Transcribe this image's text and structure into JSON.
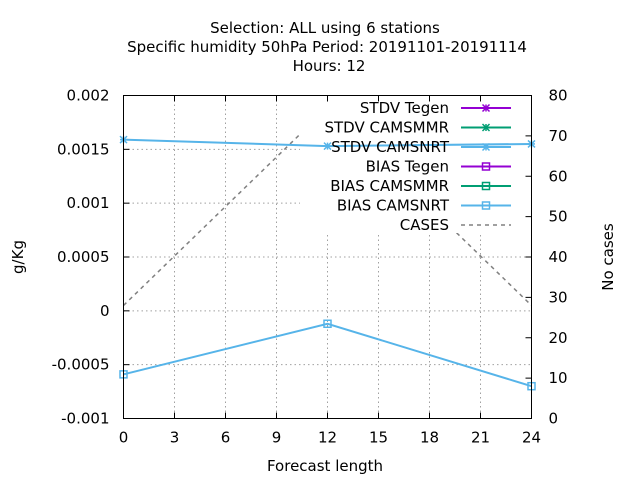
{
  "chart_data": {
    "type": "line",
    "title_lines": [
      "Selection: ALL using     6 stations",
      "Specific humidity 50hPa   Period: 20191101-20191114",
      "Hours:  12"
    ],
    "xlabel": "Forecast length",
    "ylabel": "g/Kg",
    "y2label": "No cases",
    "x_ticks": [
      0,
      3,
      6,
      9,
      12,
      15,
      18,
      21,
      24
    ],
    "x_tick_labels": [
      "0",
      "3",
      "6",
      "9",
      "12",
      "15",
      "18",
      "21",
      "24"
    ],
    "xlim": [
      0,
      24
    ],
    "y_ticks": [
      -0.001,
      -0.0005,
      0,
      0.0005,
      0.001,
      0.0015,
      0.002
    ],
    "y_tick_labels": [
      "-0.001",
      "-0.0005",
      "0",
      "0.0005",
      "0.001",
      "0.0015",
      "0.002"
    ],
    "ylim": [
      -0.001,
      0.002
    ],
    "y2_ticks": [
      0,
      10,
      20,
      30,
      40,
      50,
      60,
      70,
      80
    ],
    "y2_tick_labels": [
      "0",
      "10",
      "20",
      "30",
      "40",
      "50",
      "60",
      "70",
      "80"
    ],
    "y2lim": [
      0,
      80
    ],
    "grid": true,
    "legend_position": "top-right",
    "series": [
      {
        "name": "STDV Tegen",
        "axis": "y1",
        "color": "#9400d3",
        "marker": "star",
        "dashed": false,
        "x": [],
        "y": []
      },
      {
        "name": "STDV CAMSMMR",
        "axis": "y1",
        "color": "#009e73",
        "marker": "star",
        "dashed": false,
        "x": [],
        "y": []
      },
      {
        "name": "STDV CAMSNRT",
        "axis": "y1",
        "color": "#56b4e9",
        "marker": "star",
        "dashed": false,
        "x": [
          0,
          12,
          24
        ],
        "y": [
          0.00159,
          0.00153,
          0.00155
        ]
      },
      {
        "name": "BIAS Tegen",
        "axis": "y1",
        "color": "#9400d3",
        "marker": "square",
        "dashed": false,
        "x": [],
        "y": []
      },
      {
        "name": "BIAS CAMSMMR",
        "axis": "y1",
        "color": "#009e73",
        "marker": "square",
        "dashed": false,
        "x": [],
        "y": []
      },
      {
        "name": "BIAS CAMSNRT",
        "axis": "y1",
        "color": "#56b4e9",
        "marker": "square",
        "dashed": false,
        "x": [
          0,
          12,
          24
        ],
        "y": [
          -0.00059,
          -0.00012,
          -0.0007
        ]
      },
      {
        "name": "CASES",
        "axis": "y2",
        "color": "#808080",
        "marker": "none",
        "dashed": true,
        "x": [
          0,
          12,
          24
        ],
        "y": [
          28,
          77,
          28
        ]
      }
    ]
  }
}
